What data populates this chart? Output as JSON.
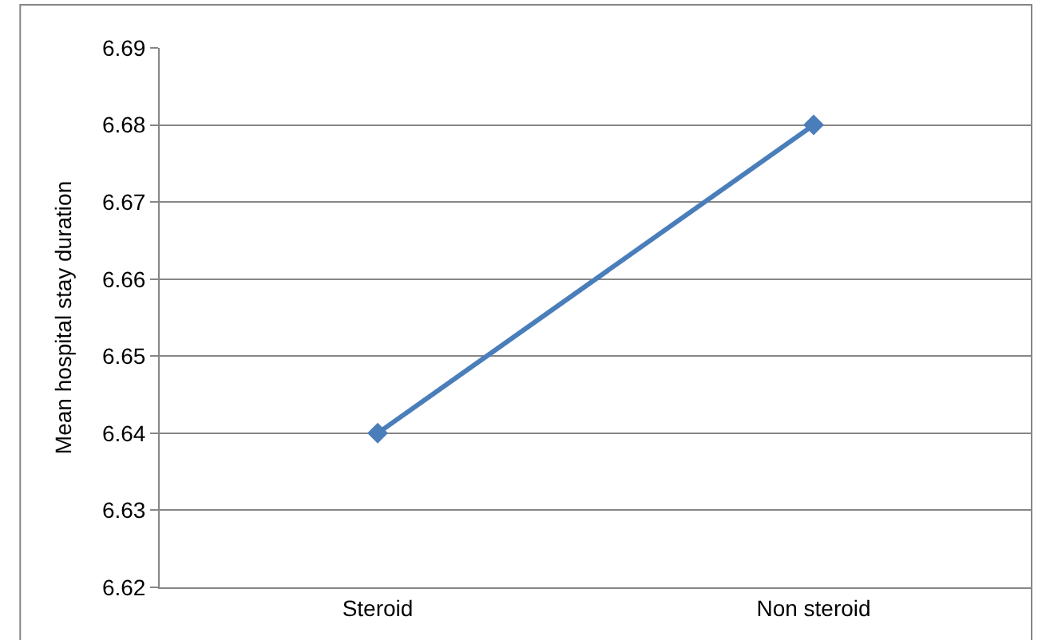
{
  "chart_data": {
    "type": "line",
    "ylabel": "Mean hospital stay duration",
    "categories": [
      "Steroid",
      "Non steroid"
    ],
    "series": [
      {
        "color": "#4a7ebb",
        "values": [
          6.64,
          6.68
        ]
      }
    ],
    "ylim": [
      6.62,
      6.69
    ],
    "yticks": [
      6.62,
      6.63,
      6.64,
      6.65,
      6.66,
      6.67,
      6.68,
      6.69
    ],
    "grid": "y",
    "marker": "diamond",
    "line_style": "solid"
  }
}
